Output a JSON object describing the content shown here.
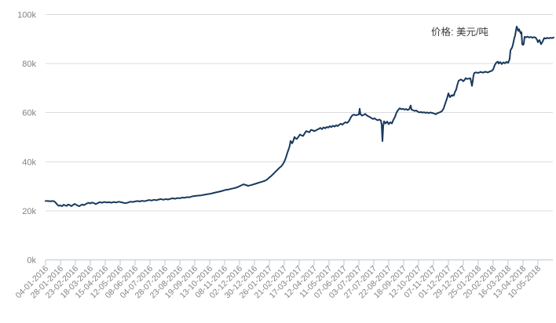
{
  "chart_data": {
    "type": "line",
    "title": "",
    "series_label": "价格: 美元/吨",
    "y_tick_labels": [
      "0k",
      "20k",
      "40k",
      "60k",
      "80k",
      "100k"
    ],
    "y_tick_values_k": [
      0,
      20,
      40,
      60,
      80,
      100
    ],
    "y_range_k": [
      0,
      100
    ],
    "grid": "horizontal",
    "legend_position": "top-right",
    "x_tick_labels": [
      "04-01-2016",
      "28-01-2016",
      "23-02-2016",
      "18-03-2016",
      "15-04-2016",
      "12-05-2016",
      "08-06-2016",
      "04-07-2016",
      "28-07-2016",
      "23-08-2016",
      "19-09-2016",
      "13-10-2016",
      "08-11-2016",
      "02-12-2016",
      "30-12-2016",
      "26-01-2017",
      "21-02-2017",
      "17-03-2017",
      "12-04-2017",
      "11-05-2017",
      "07-06-2017",
      "03-07-2017",
      "27-07-2017",
      "22-08-2017",
      "18-09-2017",
      "12-10-2017",
      "07-11-2017",
      "01-12-2017",
      "29-12-2017",
      "25-01-2018",
      "20-02-2018",
      "16-03-2018",
      "13-04-2018",
      "10-05-2018"
    ],
    "x_days_per_tick": 19,
    "points_unit": "[trading_day_index, price_in_thousand_usd_per_ton]",
    "points": [
      [
        0,
        24.0
      ],
      [
        3,
        24.0
      ],
      [
        6,
        23.9
      ],
      [
        9,
        24.0
      ],
      [
        11,
        23.9
      ],
      [
        13,
        23.3
      ],
      [
        15,
        22.5
      ],
      [
        17,
        22.0
      ],
      [
        19,
        22.2
      ],
      [
        21,
        21.9
      ],
      [
        23,
        22.5
      ],
      [
        25,
        22.2
      ],
      [
        27,
        22.0
      ],
      [
        29,
        22.6
      ],
      [
        31,
        22.3
      ],
      [
        33,
        21.9
      ],
      [
        35,
        22.4
      ],
      [
        37,
        22.8
      ],
      [
        39,
        22.5
      ],
      [
        41,
        22.1
      ],
      [
        43,
        21.9
      ],
      [
        45,
        22.3
      ],
      [
        47,
        22.6
      ],
      [
        49,
        22.3
      ],
      [
        52,
        22.9
      ],
      [
        55,
        23.3
      ],
      [
        57,
        23.0
      ],
      [
        59,
        23.4
      ],
      [
        62,
        23.1
      ],
      [
        64,
        22.7
      ],
      [
        66,
        23.1
      ],
      [
        69,
        23.5
      ],
      [
        72,
        23.3
      ],
      [
        75,
        23.6
      ],
      [
        78,
        23.4
      ],
      [
        81,
        23.5
      ],
      [
        84,
        23.3
      ],
      [
        87,
        23.6
      ],
      [
        90,
        23.4
      ],
      [
        93,
        23.7
      ],
      [
        96,
        23.5
      ],
      [
        99,
        23.3
      ],
      [
        102,
        23.1
      ],
      [
        105,
        23.4
      ],
      [
        108,
        23.7
      ],
      [
        111,
        23.6
      ],
      [
        114,
        23.8
      ],
      [
        117,
        24.0
      ],
      [
        120,
        23.8
      ],
      [
        123,
        24.1
      ],
      [
        126,
        23.9
      ],
      [
        129,
        24.2
      ],
      [
        132,
        24.4
      ],
      [
        135,
        24.2
      ],
      [
        138,
        24.5
      ],
      [
        141,
        24.3
      ],
      [
        144,
        24.6
      ],
      [
        147,
        24.8
      ],
      [
        150,
        24.5
      ],
      [
        153,
        24.8
      ],
      [
        156,
        24.6
      ],
      [
        159,
        24.9
      ],
      [
        162,
        25.1
      ],
      [
        165,
        24.9
      ],
      [
        168,
        25.2
      ],
      [
        171,
        25.1
      ],
      [
        174,
        25.4
      ],
      [
        177,
        25.3
      ],
      [
        180,
        25.6
      ],
      [
        183,
        25.5
      ],
      [
        186,
        25.8
      ],
      [
        189,
        26.0
      ],
      [
        192,
        26.1
      ],
      [
        195,
        26.2
      ],
      [
        198,
        26.3
      ],
      [
        201,
        26.5
      ],
      [
        205,
        26.7
      ],
      [
        209,
        26.9
      ],
      [
        213,
        27.2
      ],
      [
        217,
        27.5
      ],
      [
        221,
        27.8
      ],
      [
        225,
        28.1
      ],
      [
        229,
        28.5
      ],
      [
        233,
        28.7
      ],
      [
        237,
        29.0
      ],
      [
        241,
        29.3
      ],
      [
        245,
        29.7
      ],
      [
        248,
        30.2
      ],
      [
        252,
        30.8
      ],
      [
        255,
        30.5
      ],
      [
        258,
        30.2
      ],
      [
        261,
        30.4
      ],
      [
        264,
        30.7
      ],
      [
        267,
        31.0
      ],
      [
        270,
        31.3
      ],
      [
        273,
        31.6
      ],
      [
        276,
        31.9
      ],
      [
        279,
        32.2
      ],
      [
        282,
        32.7
      ],
      [
        285,
        33.6
      ],
      [
        287,
        34.1
      ],
      [
        290,
        35.0
      ],
      [
        292,
        35.7
      ],
      [
        295,
        36.6
      ],
      [
        297,
        37.3
      ],
      [
        300,
        38.1
      ],
      [
        302,
        38.9
      ],
      [
        304,
        40.0
      ],
      [
        306,
        41.6
      ],
      [
        308,
        43.7
      ],
      [
        310,
        45.5
      ],
      [
        311,
        46.6
      ],
      [
        312,
        48.5
      ],
      [
        313,
        48.0
      ],
      [
        314,
        47.5
      ],
      [
        315,
        48.1
      ],
      [
        317,
        50.1
      ],
      [
        318,
        49.6
      ],
      [
        320,
        49.3
      ],
      [
        322,
        50.2
      ],
      [
        324,
        51.1
      ],
      [
        326,
        50.7
      ],
      [
        328,
        50.5
      ],
      [
        330,
        51.6
      ],
      [
        332,
        52.5
      ],
      [
        334,
        52.2
      ],
      [
        336,
        52.0
      ],
      [
        338,
        53.0
      ],
      [
        340,
        52.8
      ],
      [
        342,
        52.5
      ],
      [
        344,
        52.7
      ],
      [
        346,
        53.1
      ],
      [
        348,
        53.4
      ],
      [
        350,
        53.8
      ],
      [
        352,
        53.3
      ],
      [
        354,
        54.0
      ],
      [
        356,
        53.6
      ],
      [
        358,
        54.2
      ],
      [
        360,
        53.9
      ],
      [
        362,
        54.5
      ],
      [
        364,
        54.1
      ],
      [
        366,
        54.7
      ],
      [
        368,
        54.3
      ],
      [
        370,
        54.9
      ],
      [
        372,
        54.5
      ],
      [
        374,
        55.1
      ],
      [
        376,
        55.5
      ],
      [
        378,
        55.1
      ],
      [
        380,
        55.7
      ],
      [
        382,
        56.1
      ],
      [
        384,
        55.8
      ],
      [
        386,
        56.4
      ],
      [
        387,
        57.0
      ],
      [
        389,
        58.2
      ],
      [
        391,
        59.0
      ],
      [
        393,
        59.2
      ],
      [
        395,
        58.9
      ],
      [
        397,
        59.1
      ],
      [
        399,
        59.3
      ],
      [
        400,
        61.6
      ],
      [
        401,
        59.4
      ],
      [
        403,
        58.8
      ],
      [
        405,
        59.1
      ],
      [
        407,
        59.5
      ],
      [
        409,
        58.9
      ],
      [
        411,
        58.5
      ],
      [
        413,
        58.2
      ],
      [
        415,
        57.8
      ],
      [
        417,
        57.4
      ],
      [
        419,
        57.7
      ],
      [
        421,
        57.2
      ],
      [
        423,
        56.9
      ],
      [
        425,
        57.2
      ],
      [
        427,
        56.8
      ],
      [
        428,
        55.0
      ],
      [
        429,
        48.4
      ],
      [
        430,
        54.5
      ],
      [
        431,
        56.5
      ],
      [
        433,
        55.6
      ],
      [
        435,
        56.4
      ],
      [
        437,
        55.3
      ],
      [
        439,
        56.1
      ],
      [
        441,
        55.6
      ],
      [
        443,
        57.1
      ],
      [
        445,
        58.3
      ],
      [
        447,
        60.1
      ],
      [
        449,
        61.1
      ],
      [
        451,
        61.8
      ],
      [
        453,
        61.4
      ],
      [
        455,
        61.6
      ],
      [
        457,
        61.2
      ],
      [
        459,
        61.5
      ],
      [
        461,
        61.1
      ],
      [
        463,
        61.4
      ],
      [
        465,
        62.9
      ],
      [
        466,
        61.2
      ],
      [
        468,
        61.0
      ],
      [
        470,
        60.7
      ],
      [
        472,
        60.9
      ],
      [
        474,
        60.4
      ],
      [
        476,
        60.1
      ],
      [
        478,
        60.3
      ],
      [
        480,
        60.0
      ],
      [
        482,
        60.2
      ],
      [
        484,
        59.9
      ],
      [
        486,
        60.1
      ],
      [
        488,
        59.8
      ],
      [
        490,
        60.1
      ],
      [
        492,
        59.9
      ],
      [
        494,
        59.7
      ],
      [
        496,
        59.5
      ],
      [
        497,
        59.3
      ],
      [
        499,
        59.8
      ],
      [
        501,
        60.0
      ],
      [
        503,
        60.3
      ],
      [
        505,
        60.7
      ],
      [
        507,
        61.8
      ],
      [
        508,
        62.8
      ],
      [
        509,
        63.7
      ],
      [
        510,
        64.7
      ],
      [
        511,
        65.6
      ],
      [
        512,
        66.7
      ],
      [
        513,
        67.9
      ],
      [
        514,
        67.0
      ],
      [
        515,
        66.3
      ],
      [
        516,
        66.7
      ],
      [
        517,
        67.1
      ],
      [
        518,
        66.8
      ],
      [
        519,
        67.2
      ],
      [
        520,
        67.0
      ],
      [
        521,
        68.2
      ],
      [
        523,
        69.5
      ],
      [
        524,
        70.9
      ],
      [
        525,
        72.0
      ],
      [
        526,
        73.0
      ],
      [
        528,
        73.4
      ],
      [
        529,
        73.5
      ],
      [
        531,
        73.1
      ],
      [
        532,
        72.8
      ],
      [
        534,
        73.5
      ],
      [
        535,
        74.1
      ],
      [
        537,
        73.7
      ],
      [
        539,
        73.9
      ],
      [
        541,
        74.0
      ],
      [
        543,
        70.9
      ],
      [
        544,
        73.0
      ],
      [
        545,
        75.2
      ],
      [
        546,
        76.2
      ],
      [
        548,
        76.4
      ],
      [
        551,
        76.2
      ],
      [
        554,
        76.6
      ],
      [
        557,
        76.3
      ],
      [
        560,
        76.7
      ],
      [
        563,
        76.4
      ],
      [
        566,
        76.8
      ],
      [
        568,
        77.0
      ],
      [
        570,
        77.6
      ],
      [
        572,
        79.4
      ],
      [
        574,
        80.4
      ],
      [
        576,
        80.8
      ],
      [
        577,
        80.0
      ],
      [
        579,
        80.6
      ],
      [
        581,
        79.8
      ],
      [
        583,
        80.5
      ],
      [
        585,
        80.1
      ],
      [
        587,
        80.7
      ],
      [
        589,
        80.3
      ],
      [
        590,
        81.0
      ],
      [
        591,
        82.0
      ],
      [
        592,
        85.3
      ],
      [
        593,
        86.0
      ],
      [
        594,
        86.5
      ],
      [
        595,
        87.5
      ],
      [
        596,
        89.0
      ],
      [
        597,
        90.5
      ],
      [
        598,
        91.5
      ],
      [
        599,
        93.5
      ],
      [
        600,
        95.1
      ],
      [
        601,
        94.2
      ],
      [
        602,
        93.3
      ],
      [
        603,
        94.0
      ],
      [
        604,
        93.2
      ],
      [
        605,
        92.3
      ],
      [
        606,
        92.8
      ],
      [
        607,
        87.9
      ],
      [
        608,
        87.6
      ],
      [
        609,
        88.1
      ],
      [
        610,
        90.9
      ],
      [
        612,
        90.7
      ],
      [
        614,
        91.0
      ],
      [
        616,
        90.6
      ],
      [
        618,
        90.9
      ],
      [
        620,
        90.5
      ],
      [
        622,
        90.8
      ],
      [
        624,
        90.6
      ],
      [
        626,
        89.6
      ],
      [
        627,
        88.7
      ],
      [
        628,
        89.3
      ],
      [
        629,
        89.6
      ],
      [
        631,
        87.9
      ],
      [
        632,
        88.5
      ],
      [
        633,
        89.0
      ],
      [
        635,
        90.4
      ],
      [
        637,
        90.2
      ],
      [
        639,
        90.5
      ],
      [
        641,
        90.3
      ],
      [
        643,
        90.5
      ],
      [
        645,
        90.4
      ],
      [
        647,
        90.6
      ]
    ]
  },
  "colors": {
    "line": "#17395d",
    "gridline": "#dcdcdc",
    "axis_line": "#b9c7d8",
    "tick_mark": "#b9c7d8",
    "axis_label_text": "#828282",
    "legend_text": "#3d3d3d",
    "background": "#ffffff"
  }
}
